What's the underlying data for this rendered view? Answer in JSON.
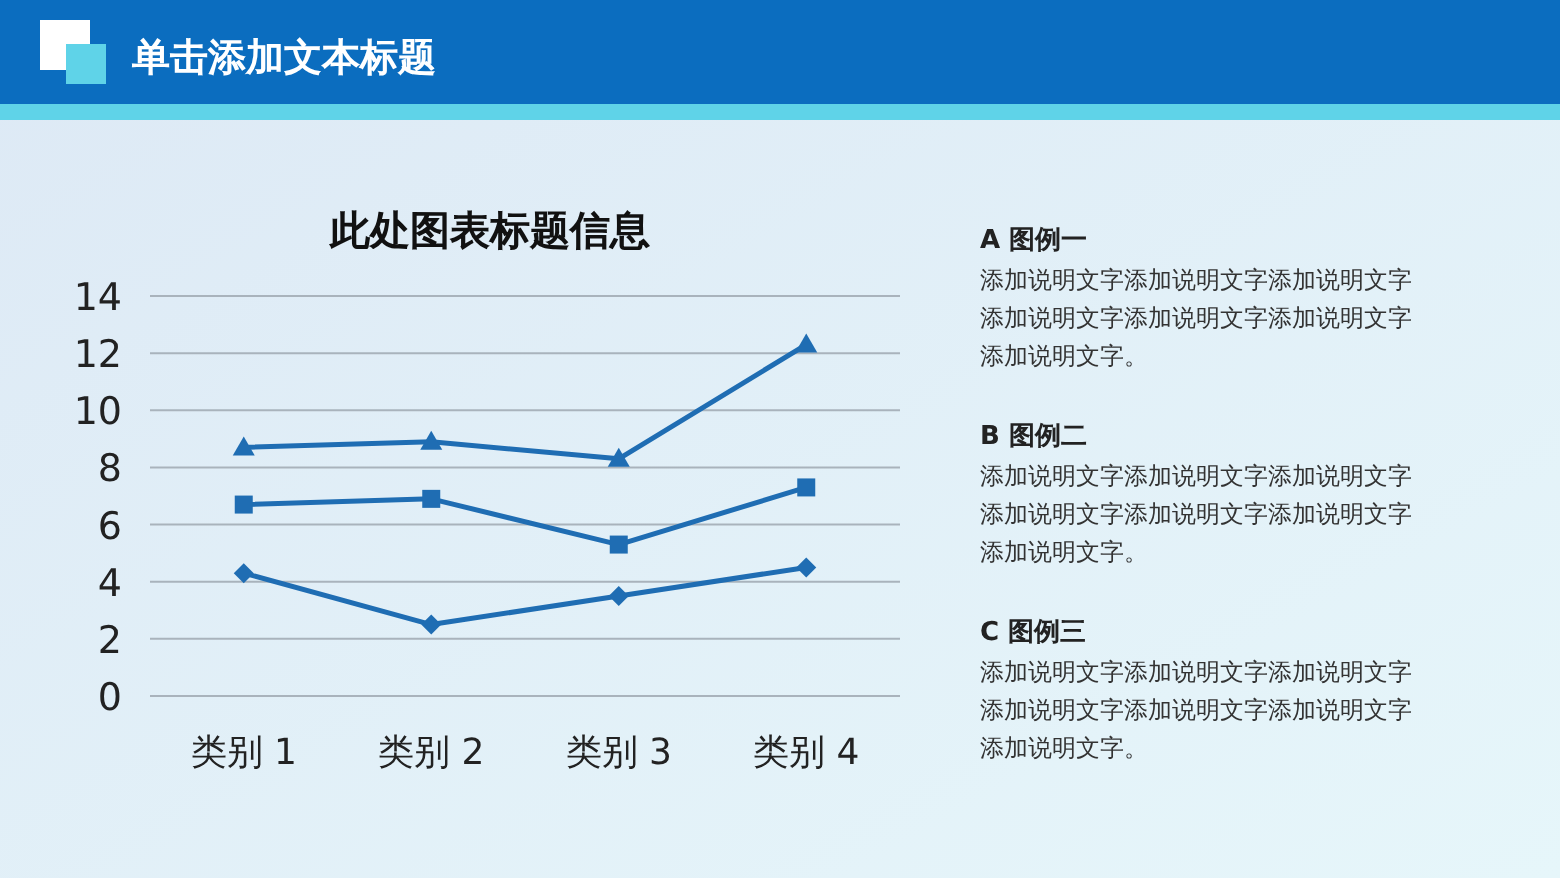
{
  "chart_data": {
    "type": "line",
    "title": "此处图表标题信息",
    "categories": [
      "类别 1",
      "类别 2",
      "类别 3",
      "类别 4"
    ],
    "series": [
      {
        "color": "#1f6db3",
        "marker": "diamond",
        "values": [
          4.3,
          2.5,
          3.5,
          4.5
        ]
      },
      {
        "color": "#1f6db3",
        "marker": "square",
        "values": [
          6.7,
          6.9,
          5.3,
          7.3
        ]
      },
      {
        "color": "#1f6db3",
        "marker": "triangle",
        "values": [
          8.7,
          8.9,
          8.3,
          12.3
        ]
      }
    ],
    "ylim": [
      0,
      14
    ],
    "yticks": [
      0,
      2,
      4,
      6,
      8,
      10,
      12,
      14
    ],
    "grid": "y",
    "line_style": "solid",
    "annotations": [
      "单击添加文本标题",
      "A  图例一",
      "添加说明文字添加说明文字添加说明文字添加说明文字添加说明文字添加说明文字添加说明文字。",
      "B  图例二",
      "添加说明文字添加说明文字添加说明文字添加说明文字添加说明文字添加说明文字添加说明文字。",
      "C  图例三",
      "添加说明文字添加说明文字添加说明文字添加说明文字添加说明文字添加说明文字添加说明文字。"
    ]
  }
}
